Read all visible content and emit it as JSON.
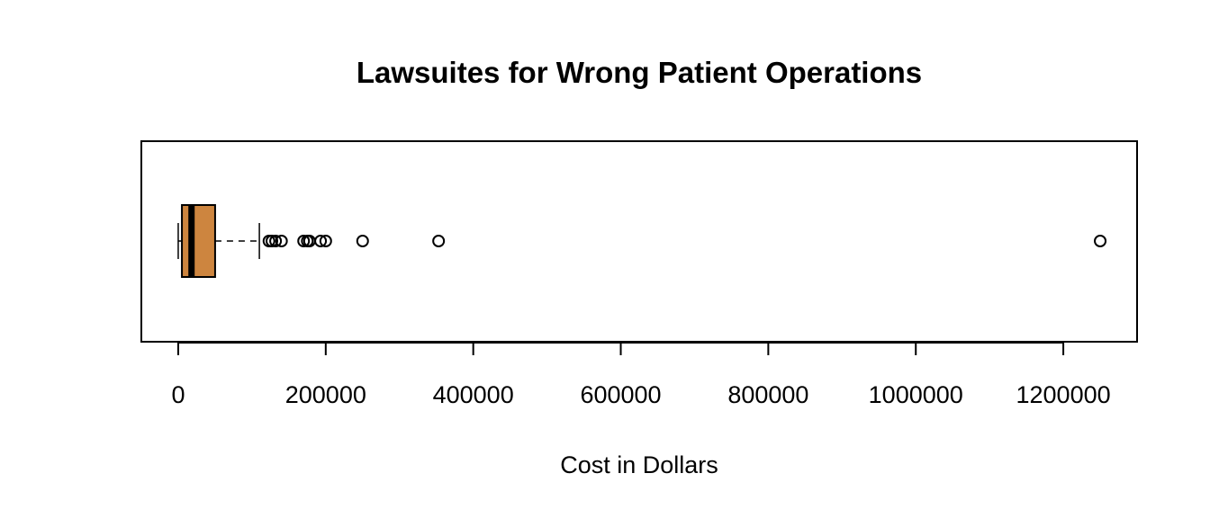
{
  "chart_data": {
    "type": "boxplot",
    "orientation": "horizontal",
    "title": "Lawsuites for Wrong Patient Operations",
    "xlabel": "Cost in Dollars",
    "ylabel": "",
    "xlim": [
      -50000,
      1300000
    ],
    "x_ticks": [
      0,
      200000,
      400000,
      600000,
      800000,
      1000000,
      1200000
    ],
    "x_tick_labels": [
      "0",
      "200000",
      "400000",
      "600000",
      "800000",
      "1000000",
      "1200000"
    ],
    "box": {
      "min_whisker": 0,
      "q1": 5000,
      "median": 18000,
      "q3": 50000,
      "max_whisker": 110000
    },
    "outliers": [
      123000,
      127000,
      132000,
      140000,
      170000,
      175000,
      178000,
      193000,
      200000,
      250000,
      353000,
      1250000
    ],
    "box_color": "#cd853f",
    "grid": false
  }
}
